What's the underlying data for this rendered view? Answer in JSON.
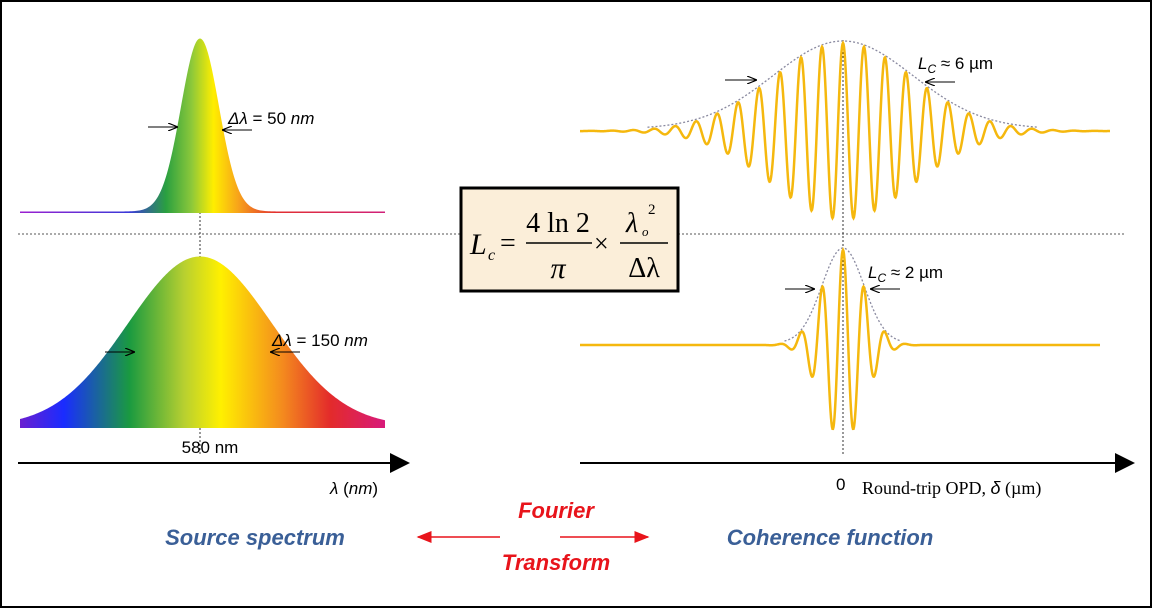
{
  "spectra": [
    {
      "symbol": "Δλ",
      "text": " = 50 ",
      "unit": "nm"
    },
    {
      "symbol": "Δλ",
      "text": " = 150 ",
      "unit": "nm"
    }
  ],
  "center_label": "580 nm",
  "left_axis": {
    "symbol": "λ",
    "open": " (",
    "unit": "nm",
    "close": ")"
  },
  "coherence": [
    {
      "symbol": "L",
      "sub": "C",
      "text": " ≈ 6 µm"
    },
    {
      "symbol": "L",
      "sub": "C",
      "text": " ≈ 2 µm"
    }
  ],
  "right_axis": {
    "zero": "0",
    "label": "Round-trip OPD, ",
    "symbol": "δ",
    "unit": " (µm)"
  },
  "formula": {
    "lhs": "L",
    "lhs_sub": "c",
    "eq": "=",
    "num1": "4 ln 2",
    "den1": "π",
    "times": "×",
    "num2": "λ",
    "num2_sub": "o",
    "num2_sup": "2",
    "den2": "Δλ"
  },
  "captions": {
    "left": "Source spectrum",
    "middle1": "Fourier",
    "middle2": "Transform",
    "right": "Coherence function"
  }
}
